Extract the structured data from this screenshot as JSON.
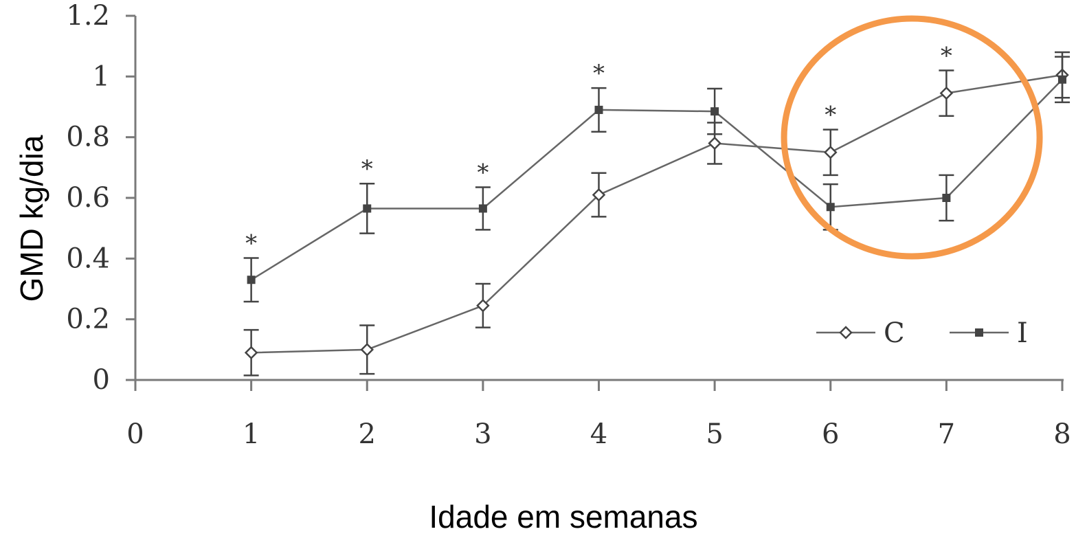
{
  "chart_data": {
    "type": "line",
    "title": "",
    "xlabel": "Idade em semanas",
    "ylabel": "GMD kg/dia",
    "xlim": [
      0,
      8
    ],
    "ylim": [
      0,
      1.2
    ],
    "x_ticks": [
      "0",
      "1",
      "2",
      "3",
      "4",
      "5",
      "6",
      "7",
      "8"
    ],
    "y_ticks": [
      "0",
      "0.2",
      "0.4",
      "0.6",
      "0.8",
      "1",
      "1.2"
    ],
    "grid": false,
    "legend_position": "bottom-right",
    "significance_marker": "*",
    "significant_x": [
      1,
      2,
      3,
      4,
      6,
      7
    ],
    "highlight": {
      "shape": "circle",
      "color": "#f5994a",
      "around_x": [
        6,
        7
      ]
    },
    "series": [
      {
        "name": "C",
        "marker": "open-diamond",
        "x": [
          1,
          2,
          3,
          4,
          5,
          6,
          7,
          8
        ],
        "y": [
          0.09,
          0.1,
          0.245,
          0.61,
          0.78,
          0.75,
          0.945,
          1.005
        ],
        "err": [
          0.075,
          0.08,
          0.072,
          0.072,
          0.068,
          0.075,
          0.075,
          0.075
        ]
      },
      {
        "name": "I",
        "marker": "filled-square",
        "x": [
          1,
          2,
          3,
          4,
          5,
          6,
          7,
          8
        ],
        "y": [
          0.33,
          0.565,
          0.565,
          0.89,
          0.885,
          0.57,
          0.6,
          0.99
        ],
        "err": [
          0.072,
          0.082,
          0.07,
          0.072,
          0.075,
          0.075,
          0.075,
          0.075
        ]
      }
    ]
  }
}
